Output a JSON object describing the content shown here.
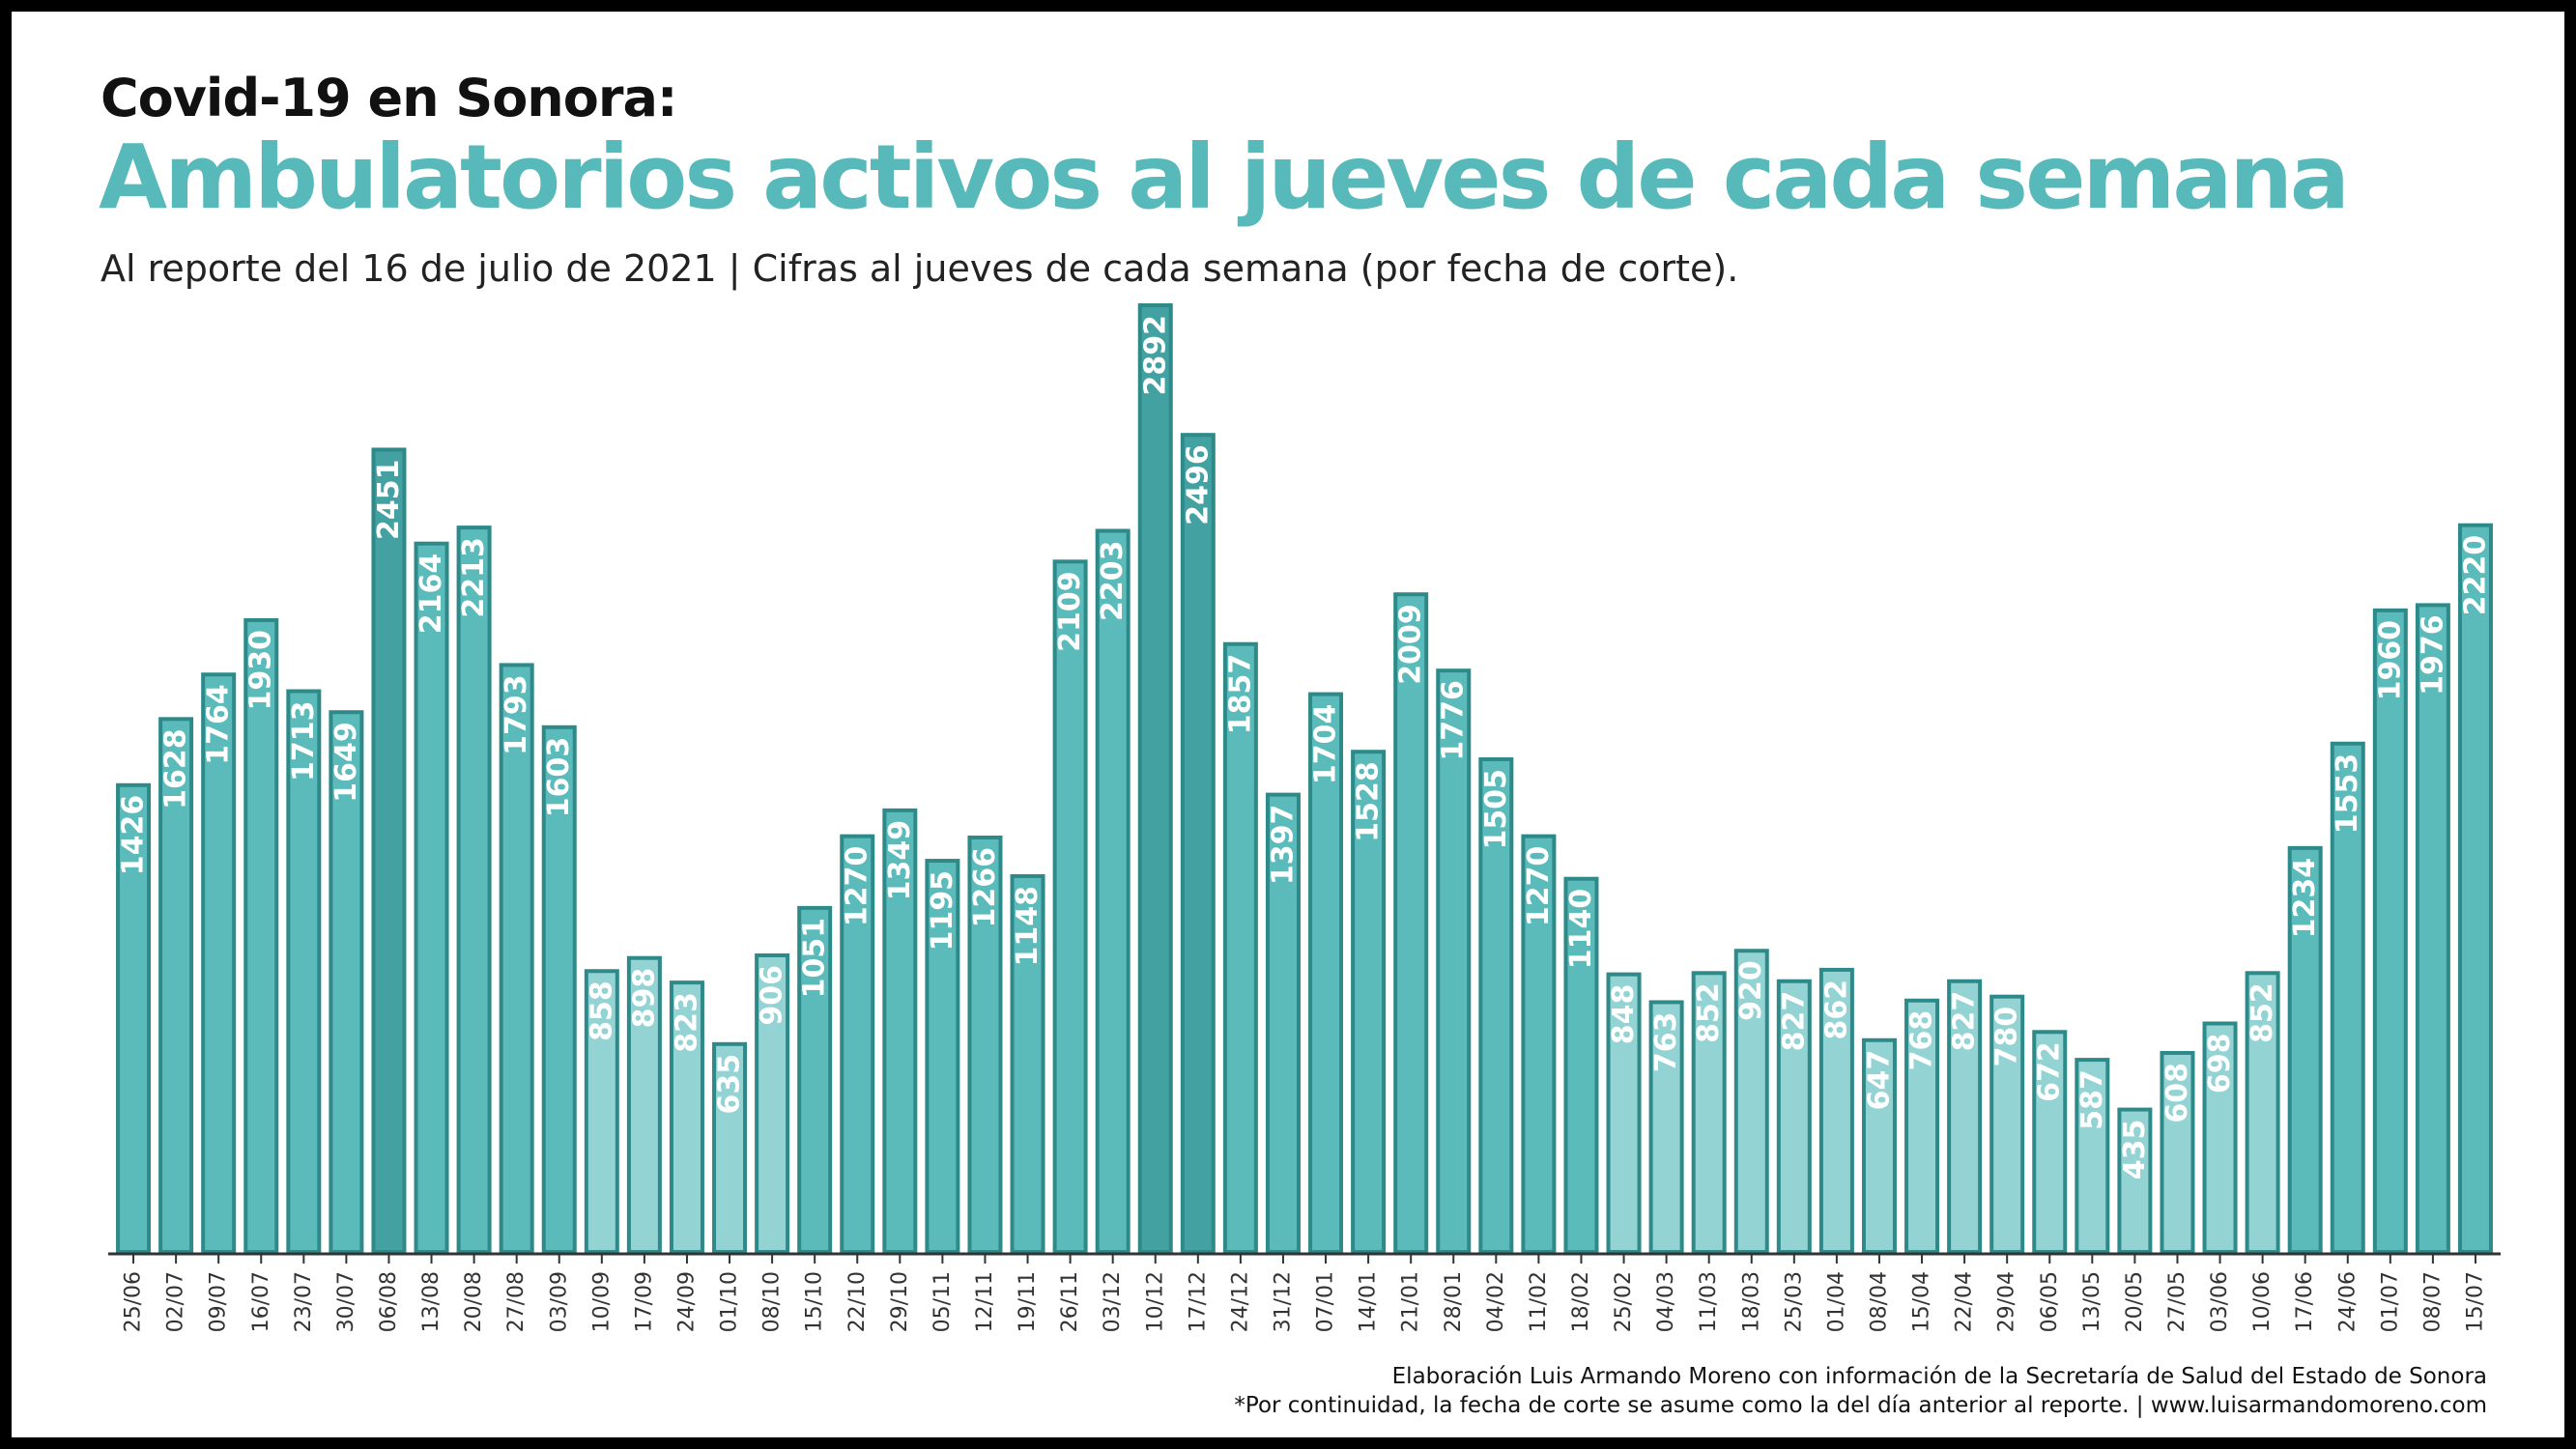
{
  "header": {
    "suptitle": "Covid-19 en Sonora:",
    "title": "Ambulatorios activos al jueves de cada semana",
    "subtitle": "Al reporte del 16 de julio de 2021  | Cifras al jueves de cada semana (por fecha de corte)."
  },
  "footer": {
    "credit": "Elaboración Luis Armando Moreno con información de la Secretaría de Salud del Estado de Sonora",
    "note": "*Por continuidad, la fecha de corte se asume como la del día anterior al reporte. | www.luisarmandomoreno.com"
  },
  "colors": {
    "light": "#93d3d3",
    "mid": "#5bbaba",
    "dark": "#43a1a1",
    "stroke": "#2e8a89",
    "axis": "#333333",
    "value_label": "#ffffff",
    "tick_label": "#333333"
  },
  "chart_data": {
    "type": "bar",
    "title": "Ambulatorios activos al jueves de cada semana",
    "xlabel": "",
    "ylabel": "",
    "ylim": [
      0,
      2892
    ],
    "grid": false,
    "legend": "none",
    "categories": [
      "25/06",
      "02/07",
      "09/07",
      "16/07",
      "23/07",
      "30/07",
      "06/08",
      "13/08",
      "20/08",
      "27/08",
      "03/09",
      "10/09",
      "17/09",
      "24/09",
      "01/10",
      "08/10",
      "15/10",
      "22/10",
      "29/10",
      "05/11",
      "12/11",
      "19/11",
      "26/11",
      "03/12",
      "10/12",
      "17/12",
      "24/12",
      "31/12",
      "07/01",
      "14/01",
      "21/01",
      "28/01",
      "04/02",
      "11/02",
      "18/02",
      "25/02",
      "04/03",
      "11/03",
      "18/03",
      "25/03",
      "01/04",
      "08/04",
      "15/04",
      "22/04",
      "29/04",
      "06/05",
      "13/05",
      "20/05",
      "27/05",
      "03/06",
      "10/06",
      "17/06",
      "24/06",
      "01/07",
      "08/07",
      "15/07"
    ],
    "values": [
      1426,
      1628,
      1764,
      1930,
      1713,
      1649,
      2451,
      2164,
      2213,
      1793,
      1603,
      858,
      898,
      823,
      635,
      906,
      1051,
      1270,
      1349,
      1195,
      1266,
      1148,
      2109,
      2203,
      2892,
      2496,
      1857,
      1397,
      1704,
      1528,
      2009,
      1776,
      1505,
      1270,
      1140,
      848,
      763,
      852,
      920,
      827,
      862,
      647,
      768,
      827,
      780,
      672,
      587,
      435,
      608,
      698,
      852,
      1234,
      1553,
      1960,
      1976,
      2220
    ],
    "value_labels": [
      "1426",
      "1628",
      "1764",
      "1930",
      "1713",
      "1649",
      "2451",
      "2164",
      "2213",
      "1793",
      "1603",
      "858",
      "898",
      "823",
      "635",
      "906",
      "1051",
      "1270",
      "1349",
      "1195",
      "1266",
      "1148",
      "2109",
      "2203",
      "2892",
      "2496",
      "1857",
      "1397",
      "1704",
      "1528",
      "2009",
      "1776",
      "1505",
      "1270",
      "1140",
      "848",
      "763",
      "852",
      "920",
      "827",
      "862",
      "647",
      "768",
      "827",
      "780",
      "672",
      "587",
      "435",
      "608",
      "698",
      "852",
      "1234",
      "1553",
      "1960",
      "1976",
      "2220"
    ]
  }
}
